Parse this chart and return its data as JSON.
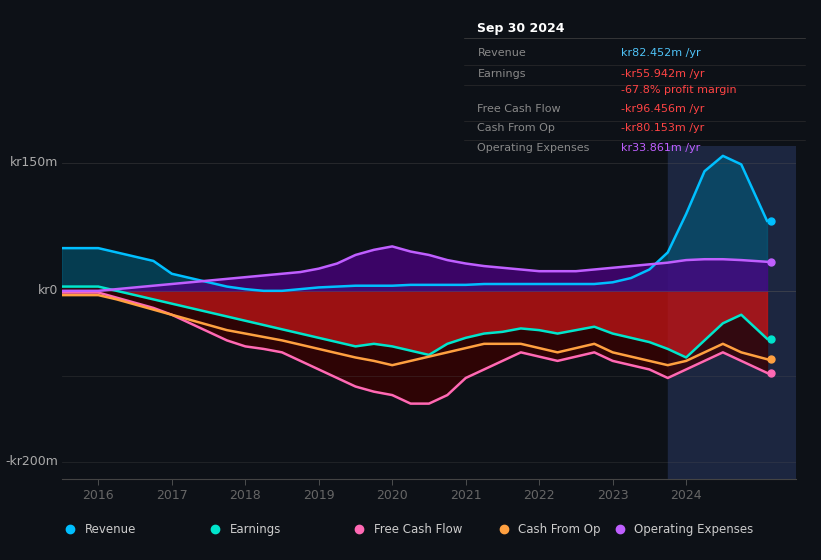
{
  "bg_color": "#0d1117",
  "ylim": [
    -220,
    170
  ],
  "xlim_start": 2015.5,
  "xlim_end": 2025.5,
  "xticks": [
    2016,
    2017,
    2018,
    2019,
    2020,
    2021,
    2022,
    2023,
    2024
  ],
  "y_label_150": "kr150m",
  "y_label_0": "kr0",
  "y_label_neg200": "-kr200m",
  "legend_items": [
    "Revenue",
    "Earnings",
    "Free Cash Flow",
    "Cash From Op",
    "Operating Expenses"
  ],
  "legend_colors": [
    "#00bfff",
    "#00e5cc",
    "#ff69b4",
    "#ffa040",
    "#bf5fff"
  ],
  "info_box": {
    "title": "Sep 30 2024",
    "rows": [
      {
        "label": "Revenue",
        "value": "kr82.452m /yr",
        "value_color": "#4fc3f7"
      },
      {
        "label": "Earnings",
        "value": "-kr55.942m /yr",
        "value_color": "#ff4444"
      },
      {
        "label": "",
        "value": "-67.8% profit margin",
        "value_color": "#ff4444"
      },
      {
        "label": "Free Cash Flow",
        "value": "-kr96.456m /yr",
        "value_color": "#ff4444"
      },
      {
        "label": "Cash From Op",
        "value": "-kr80.153m /yr",
        "value_color": "#ff4444"
      },
      {
        "label": "Operating Expenses",
        "value": "kr33.861m /yr",
        "value_color": "#bf5fff"
      }
    ]
  },
  "years": [
    2015.5,
    2016.0,
    2016.25,
    2016.5,
    2016.75,
    2017.0,
    2017.25,
    2017.5,
    2017.75,
    2018.0,
    2018.25,
    2018.5,
    2018.75,
    2019.0,
    2019.25,
    2019.5,
    2019.75,
    2020.0,
    2020.25,
    2020.5,
    2020.75,
    2021.0,
    2021.25,
    2021.5,
    2021.75,
    2022.0,
    2022.25,
    2022.5,
    2022.75,
    2023.0,
    2023.25,
    2023.5,
    2023.75,
    2024.0,
    2024.25,
    2024.5,
    2024.75,
    2025.1
  ],
  "revenue": [
    50,
    50,
    45,
    40,
    35,
    20,
    15,
    10,
    5,
    2,
    0,
    0,
    2,
    4,
    5,
    6,
    6,
    6,
    7,
    7,
    7,
    7,
    8,
    8,
    8,
    8,
    8,
    8,
    8,
    10,
    15,
    25,
    45,
    90,
    140,
    158,
    148,
    82
  ],
  "earnings": [
    5,
    5,
    0,
    -5,
    -10,
    -15,
    -20,
    -25,
    -30,
    -35,
    -40,
    -45,
    -50,
    -55,
    -60,
    -65,
    -62,
    -65,
    -70,
    -75,
    -62,
    -55,
    -50,
    -48,
    -44,
    -46,
    -50,
    -46,
    -42,
    -50,
    -55,
    -60,
    -68,
    -78,
    -58,
    -38,
    -28,
    -56
  ],
  "free_cash_flow": [
    -2,
    -2,
    -8,
    -14,
    -20,
    -28,
    -38,
    -48,
    -58,
    -65,
    -68,
    -72,
    -82,
    -92,
    -102,
    -112,
    -118,
    -122,
    -132,
    -132,
    -122,
    -102,
    -92,
    -82,
    -72,
    -77,
    -82,
    -77,
    -72,
    -82,
    -87,
    -92,
    -102,
    -92,
    -82,
    -72,
    -82,
    -96
  ],
  "cash_from_op": [
    -5,
    -5,
    -10,
    -16,
    -22,
    -28,
    -34,
    -40,
    -46,
    -50,
    -54,
    -58,
    -63,
    -68,
    -73,
    -78,
    -82,
    -87,
    -82,
    -77,
    -72,
    -67,
    -62,
    -62,
    -62,
    -67,
    -72,
    -67,
    -62,
    -72,
    -77,
    -82,
    -87,
    -82,
    -72,
    -62,
    -72,
    -80
  ],
  "op_expenses": [
    0,
    0,
    2,
    4,
    6,
    8,
    10,
    12,
    14,
    16,
    18,
    20,
    22,
    26,
    32,
    42,
    48,
    52,
    46,
    42,
    36,
    32,
    29,
    27,
    25,
    23,
    23,
    23,
    25,
    27,
    29,
    31,
    33,
    36,
    37,
    37,
    36,
    34
  ],
  "highlight_start": 2023.75,
  "highlight_color": "#1c2640"
}
